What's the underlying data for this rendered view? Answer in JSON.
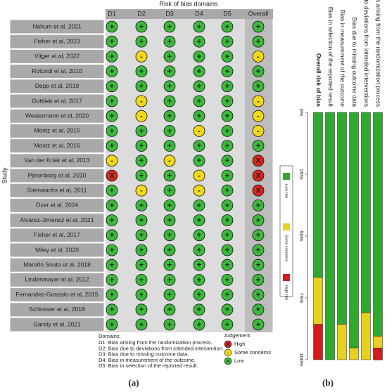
{
  "figure_a": {
    "title": "Risk of bias domains",
    "y_label": "Study",
    "columns": [
      "D1",
      "D2",
      "D3",
      "D4",
      "D5",
      "Overall"
    ],
    "rows": [
      {
        "study": "Nahum et al, 2021",
        "judgements": [
          "+",
          "+",
          "+",
          "+",
          "+",
          "+"
        ]
      },
      {
        "study": "Fisher et al, 2023",
        "judgements": [
          "+",
          "+",
          "+",
          "+",
          "+",
          "+"
        ]
      },
      {
        "study": "Vitger et al, 2022",
        "judgements": [
          "+",
          "-",
          "+",
          "+",
          "+",
          "-"
        ]
      },
      {
        "study": "Rotondi et al, 2010",
        "judgements": [
          "+",
          "+",
          "+",
          "+",
          "+",
          "+"
        ]
      },
      {
        "study": "Depp et al, 2019",
        "judgements": [
          "+",
          "+",
          "+",
          "+",
          "+",
          "+"
        ]
      },
      {
        "study": "Gottlieb et al, 2017",
        "judgements": [
          "+",
          "-",
          "+",
          "+",
          "+",
          "-"
        ]
      },
      {
        "study": "Westermann et al, 2020",
        "judgements": [
          "+",
          "-",
          "+",
          "+",
          "+",
          "-"
        ]
      },
      {
        "study": "Moritz et al, 2015",
        "judgements": [
          "+",
          "+",
          "+",
          "-",
          "+",
          "-"
        ]
      },
      {
        "study": "Moritz et al, 2016",
        "judgements": [
          "+",
          "+",
          "+",
          "+",
          "+",
          "+"
        ]
      },
      {
        "study": "Van der Kriek et al, 2013",
        "judgements": [
          "-",
          "+",
          "-",
          "+",
          "+",
          "X"
        ]
      },
      {
        "study": "Pjinenborg et al, 2010",
        "judgements": [
          "X",
          "+",
          "+",
          "-",
          "+",
          "X"
        ]
      },
      {
        "study": "Steinwachs et al, 2011",
        "judgements": [
          "+",
          "-",
          "+",
          "-",
          "+",
          "X"
        ]
      },
      {
        "study": "Özer et al, 2024",
        "judgements": [
          "+",
          "+",
          "+",
          "+",
          "+",
          "+"
        ]
      },
      {
        "study": "Alvarez-Jimenez et al, 2021",
        "judgements": [
          "+",
          "+",
          "+",
          "+",
          "+",
          "+"
        ]
      },
      {
        "study": "Fisher et al, 2017",
        "judgements": [
          "+",
          "+",
          "+",
          "+",
          "+",
          "+"
        ]
      },
      {
        "study": "Miley et al, 2020",
        "judgements": [
          "+",
          "+",
          "+",
          "+",
          "+",
          "+"
        ]
      },
      {
        "study": "Maroño Souto et al, 2018",
        "judgements": [
          "+",
          "+",
          "+",
          "+",
          "+",
          "+"
        ]
      },
      {
        "study": "Lindenmayer et al, 2012",
        "judgements": [
          "+",
          "+",
          "+",
          "+",
          "+",
          "+"
        ]
      },
      {
        "study": "Fernandez-Gonzalo et al, 2015",
        "judgements": [
          "+",
          "+",
          "+",
          "+",
          "+",
          "+"
        ]
      },
      {
        "study": "Schlosser et al, 2018",
        "judgements": [
          "+",
          "+",
          "+",
          "+",
          "+",
          "+"
        ]
      },
      {
        "study": "Garety et al, 2021",
        "judgements": [
          "+",
          "+",
          "+",
          "+",
          "+",
          "+"
        ]
      }
    ],
    "domains_title": "Domains:",
    "domains": [
      "D1: Bias arising from the randomization process.",
      "D2: Bias due to deviations from intended intervention.",
      "D3: Bias due to missing outcome data.",
      "D4: Bias in measurement of the outcome.",
      "D5: Bias in selection of the reported result."
    ],
    "legend_title": "Judgement",
    "legend": [
      {
        "symbol": "X",
        "label": "High",
        "color": "#d9261c"
      },
      {
        "symbol": "-",
        "label": "Some concerns",
        "color": "#f2d81a"
      },
      {
        "symbol": "+",
        "label": "Low",
        "color": "#3cb83c"
      }
    ],
    "panel_label": "(a)"
  },
  "chart_data": {
    "type": "bar",
    "stacked": true,
    "categories": [
      "Bias arising from the randomization process",
      "Bias due to deviations from intended interventions",
      "Bias due to missing outcome data",
      "Bias in measurement of the outcome",
      "Bias in selection of the reported result",
      "Overall risk of bias"
    ],
    "series": [
      {
        "name": "Low risk",
        "color": "#2eaa2e",
        "values": [
          90.5,
          81.0,
          95.2,
          85.7,
          100,
          66.7
        ]
      },
      {
        "name": "Some concerns",
        "color": "#e8d11e",
        "values": [
          4.8,
          19.0,
          4.8,
          14.3,
          0,
          19.0
        ]
      },
      {
        "name": "High risk",
        "color": "#d41c1c",
        "values": [
          4.8,
          0,
          0,
          0,
          0,
          14.3
        ]
      }
    ],
    "ylim": [
      0,
      100
    ],
    "yticks": [
      {
        "value": 0,
        "label": "0%"
      },
      {
        "value": 25,
        "label": "25%"
      },
      {
        "value": 50,
        "label": "50%"
      },
      {
        "value": 75,
        "label": "75%"
      },
      {
        "value": 100,
        "label": "100%"
      }
    ],
    "legend": "left",
    "panel_label": "(b)"
  }
}
